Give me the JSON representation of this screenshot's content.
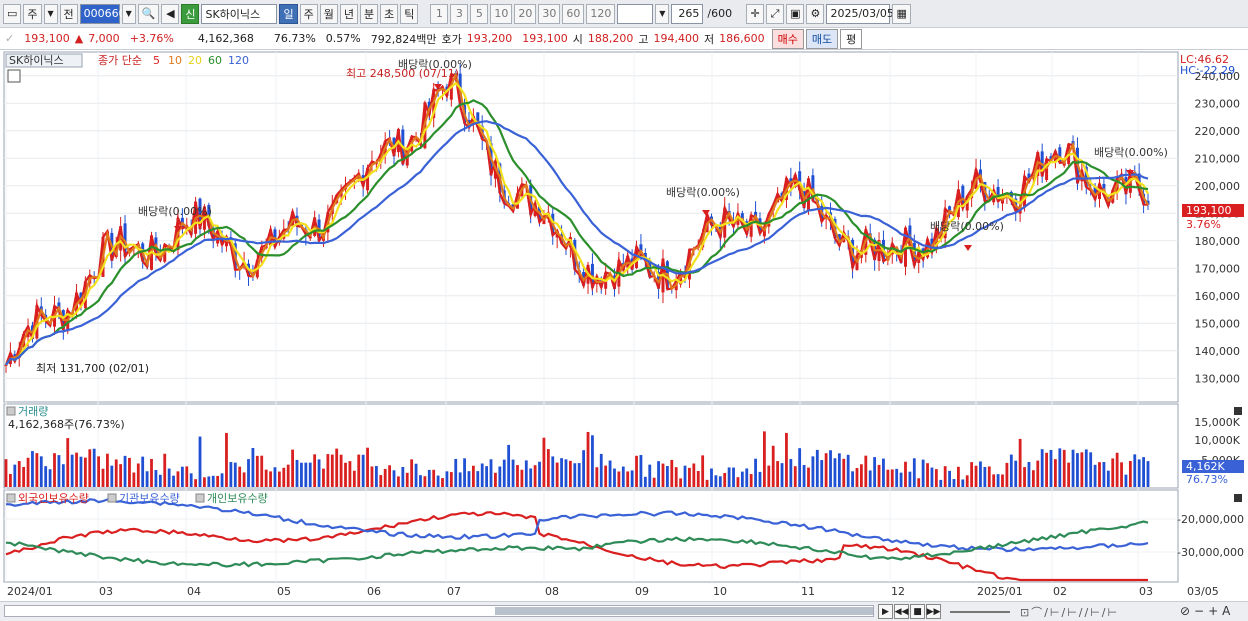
{
  "toolbar": {
    "market": "주",
    "prev": "전",
    "code": "000660",
    "name": "SK하이닉스",
    "new_label": "신",
    "periods": [
      "일",
      "주",
      "월",
      "년",
      "분",
      "초",
      "틱"
    ],
    "active_period": "일",
    "numbers": [
      "1",
      "3",
      "5",
      "10",
      "20",
      "30",
      "60",
      "120"
    ],
    "count": "265",
    "total": "/600",
    "date": "2025/03/05"
  },
  "quote": {
    "price": "193,100",
    "change": "7,000",
    "pct": "+3.76%",
    "volume": "4,162,368",
    "vol_ratio": "76.73%",
    "turnover": "0.57%",
    "amount": "792,824백만",
    "bid_label": "호가",
    "bid1": "193,200",
    "bid2": "193,100",
    "open_label": "시",
    "open": "188,200",
    "high_label": "고",
    "high": "194,400",
    "low_label": "저",
    "low": "186,600",
    "buy": "매수",
    "sell": "매도",
    "eval": "평"
  },
  "price_panel": {
    "name": "SK하이닉스",
    "ma_label": "종가 단순",
    "ma_periods": [
      "5",
      "10",
      "20",
      "60",
      "120"
    ],
    "ma_colors": [
      "#d91f1f",
      "#e0781c",
      "#f2e11c",
      "#2b8f2b",
      "#3a62d6"
    ],
    "lc": "LC:46.62",
    "hc": "HC:-22.29",
    "high_note": "최고 248,500 (07/11)",
    "low_note": "최저 131,700 (02/01)",
    "div_note": "배당락(0.00%)",
    "last_price": "193,100",
    "last_pct": "3.76%",
    "y_ticks": [
      "240,000",
      "230,000",
      "220,000",
      "210,000",
      "200,000",
      "190,000",
      "180,000",
      "170,000",
      "160,000",
      "150,000",
      "140,000",
      "130,000"
    ]
  },
  "volume_panel": {
    "title": "거래량",
    "value": "4,162,368주(76.73%)",
    "y_ticks": [
      "15,000K",
      "10,000K",
      "5,000K"
    ],
    "last": "4,162K",
    "last_pct": "76.73%"
  },
  "holdings_panel": {
    "series": [
      "외국인보유수량",
      "기관보유수량",
      "개인보유수량"
    ],
    "colors": [
      "#d91f1f",
      "#3a62d6",
      "#2e8b57"
    ],
    "y_ticks": [
      "-20,000,000",
      "-30,000,000"
    ]
  },
  "x_axis": [
    "2024/01",
    "03",
    "04",
    "05",
    "06",
    "07",
    "08",
    "09",
    "10",
    "11",
    "12",
    "2025/01",
    "02",
    "03",
    "03/05"
  ],
  "chart_data": {
    "type": "line",
    "title": "SK하이닉스",
    "x": [
      "2024/01",
      "03",
      "04",
      "05",
      "06",
      "07",
      "08",
      "09",
      "10",
      "11",
      "12",
      "2025/01",
      "02",
      "03"
    ],
    "series": [
      {
        "name": "종가",
        "values": [
          135000,
          170000,
          185000,
          175000,
          200000,
          235000,
          190000,
          165000,
          180000,
          195000,
          172000,
          195000,
          210000,
          193100
        ]
      }
    ],
    "ylim": [
      125000,
      245000
    ]
  }
}
